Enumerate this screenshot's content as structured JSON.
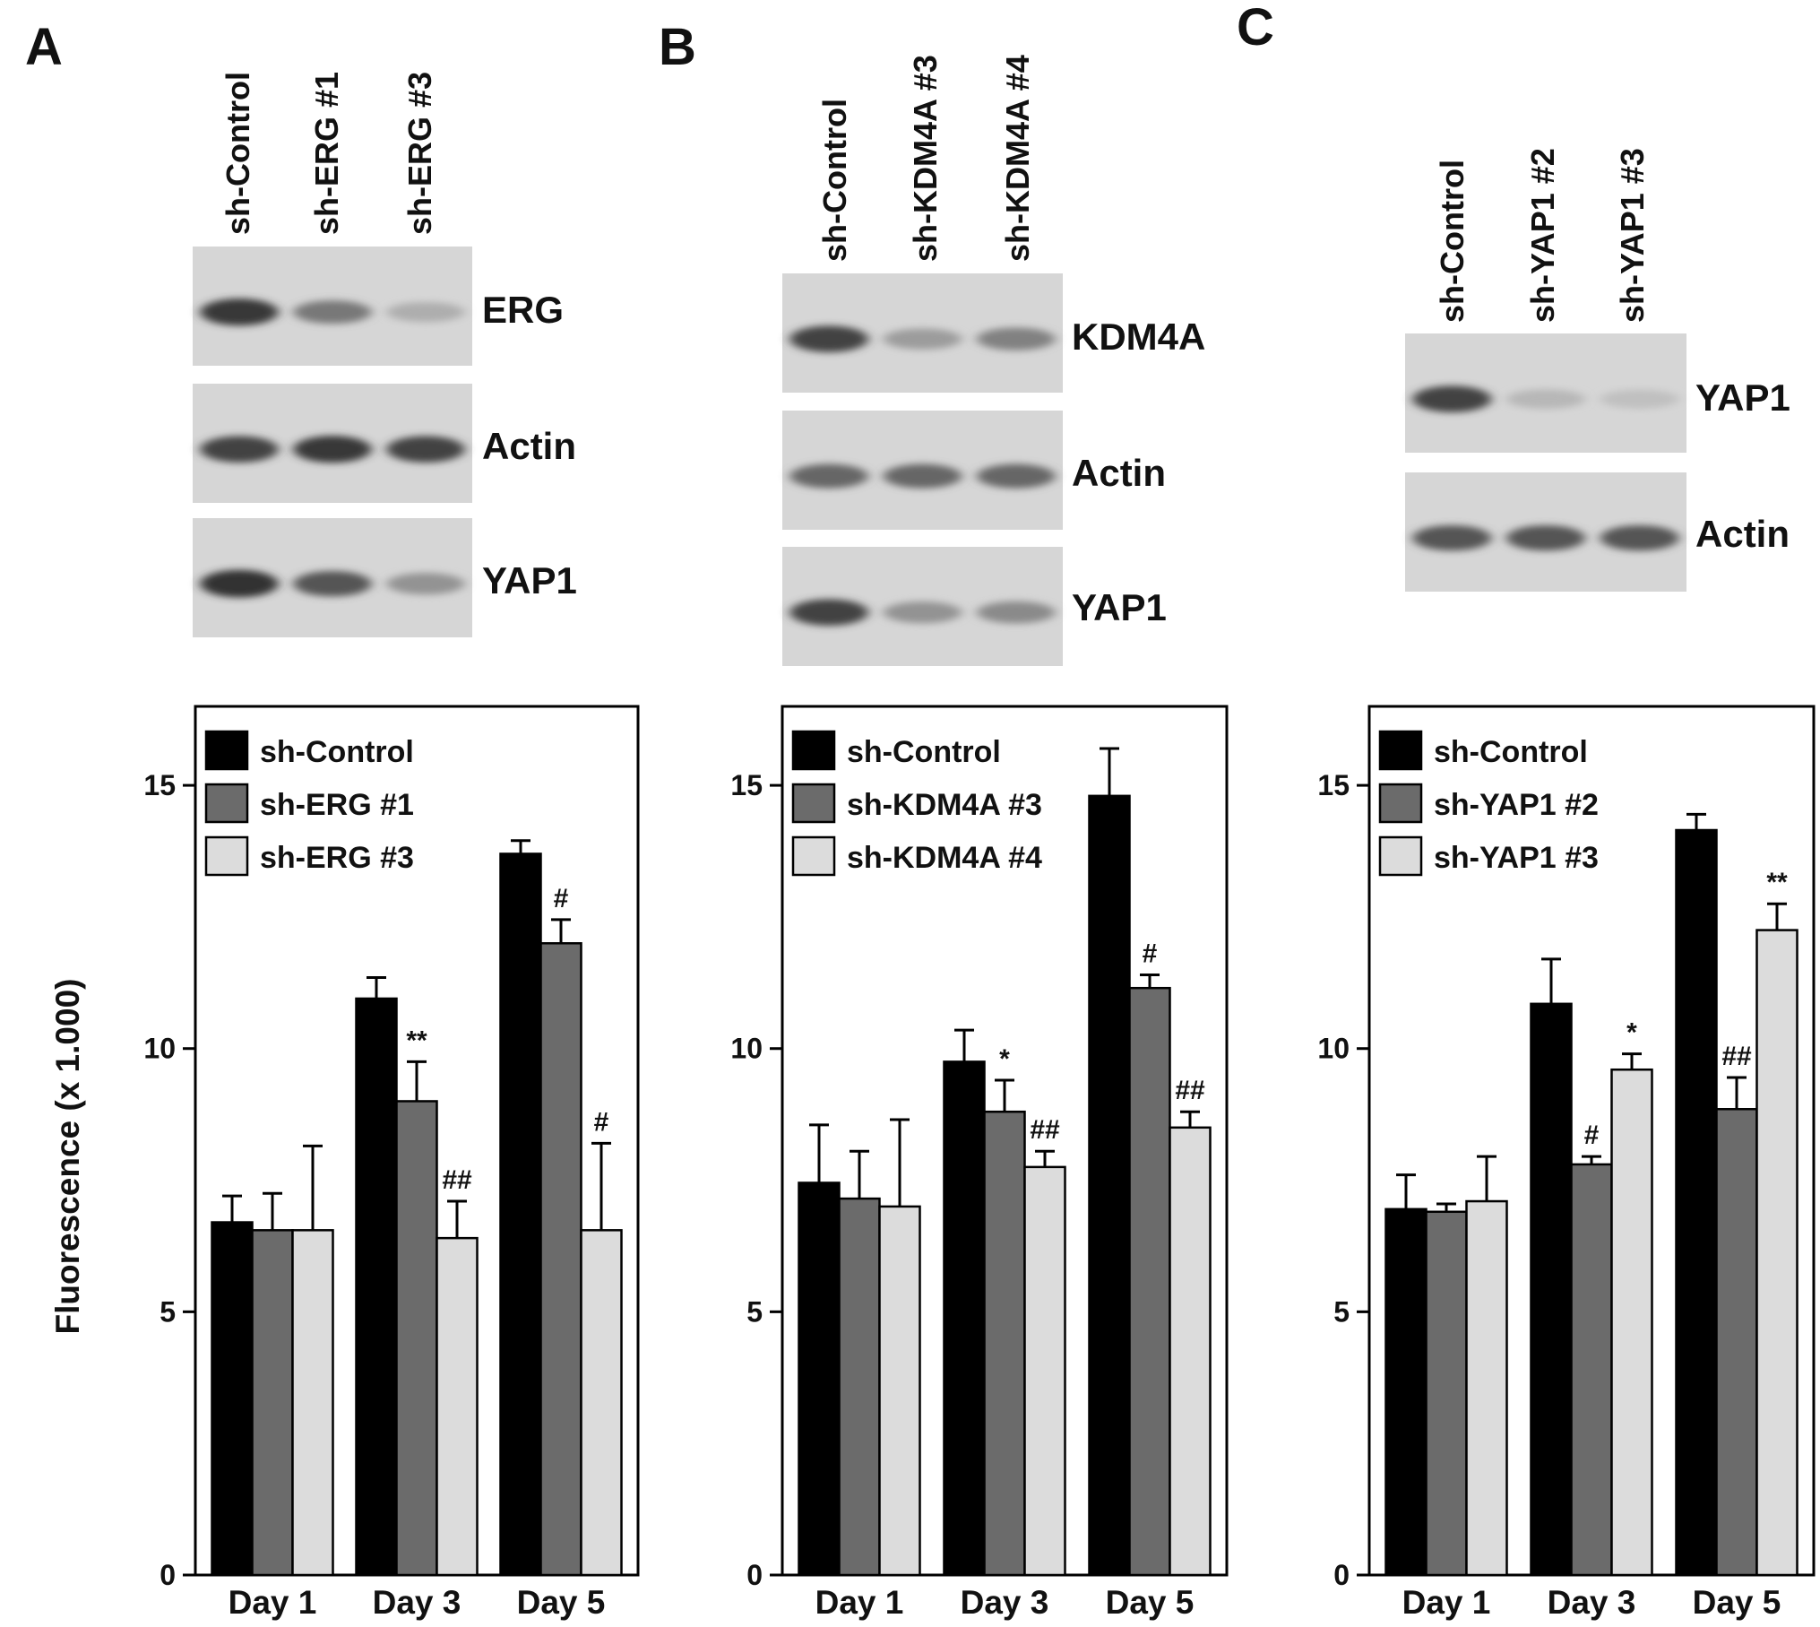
{
  "colors": {
    "sh_control": "#000000",
    "knockdown_1": "#6b6b6b",
    "knockdown_2": "#dcdcdc",
    "axis": "#000000"
  },
  "y_axis_label": "Fluorescence  (x 1.000)",
  "panels": [
    {
      "letter": "A",
      "lanes": [
        "sh-Control",
        "sh-ERG #1",
        "sh-ERG #3"
      ],
      "blots": [
        {
          "protein": "ERG",
          "bands": [
            0.85,
            0.5,
            0.2
          ]
        },
        {
          "protein": "Actin",
          "bands": [
            0.8,
            0.85,
            0.8
          ]
        },
        {
          "protein": "YAP1",
          "bands": [
            0.9,
            0.7,
            0.35
          ]
        }
      ]
    },
    {
      "letter": "B",
      "lanes": [
        "sh-Control",
        "sh-KDM4A #3",
        "sh-KDM4A #4"
      ],
      "blots": [
        {
          "protein": "KDM4A",
          "bands": [
            0.8,
            0.3,
            0.45
          ]
        },
        {
          "protein": "Actin",
          "bands": [
            0.6,
            0.6,
            0.6
          ]
        },
        {
          "protein": "YAP1",
          "bands": [
            0.8,
            0.35,
            0.4
          ]
        }
      ]
    },
    {
      "letter": "C",
      "lanes": [
        "sh-Control",
        "sh-YAP1 #2",
        "sh-YAP1 #3"
      ],
      "blots": [
        {
          "protein": "YAP1",
          "bands": [
            0.8,
            0.15,
            0.1
          ]
        },
        {
          "protein": "Actin",
          "bands": [
            0.7,
            0.7,
            0.7
          ]
        }
      ]
    }
  ],
  "chart_data": [
    {
      "type": "bar",
      "categories": [
        "Day 1",
        "Day 3",
        "Day 5"
      ],
      "ylim": [
        0,
        16.5
      ],
      "yticks": [
        0,
        5,
        10,
        15
      ],
      "ylabel": "Fluorescence  (x 1.000)",
      "legend_position": "top-left",
      "series": [
        {
          "name": "sh-Control",
          "values": [
            6.7,
            10.95,
            13.7
          ],
          "errors": [
            0.5,
            0.4,
            0.25
          ]
        },
        {
          "name": "sh-ERG #1",
          "values": [
            6.55,
            9.0,
            12.0
          ],
          "errors": [
            0.7,
            0.75,
            0.45
          ]
        },
        {
          "name": "sh-ERG #3",
          "values": [
            6.55,
            6.4,
            6.55
          ],
          "errors": [
            1.6,
            0.7,
            1.65
          ]
        }
      ],
      "annotations": [
        {
          "series": 1,
          "category": 1,
          "text": "**"
        },
        {
          "series": 2,
          "category": 1,
          "text": "##"
        },
        {
          "series": 1,
          "category": 2,
          "text": "#"
        },
        {
          "series": 2,
          "category": 2,
          "text": "#"
        }
      ]
    },
    {
      "type": "bar",
      "categories": [
        "Day 1",
        "Day 3",
        "Day 5"
      ],
      "ylim": [
        0,
        16.5
      ],
      "yticks": [
        0,
        5,
        10,
        15
      ],
      "legend_position": "top-left",
      "series": [
        {
          "name": "sh-Control",
          "values": [
            7.45,
            9.75,
            14.8
          ],
          "errors": [
            1.1,
            0.6,
            0.9
          ]
        },
        {
          "name": "sh-KDM4A #3",
          "values": [
            7.15,
            8.8,
            11.15
          ],
          "errors": [
            0.9,
            0.6,
            0.25
          ]
        },
        {
          "name": "sh-KDM4A #4",
          "values": [
            7.0,
            7.75,
            8.5
          ],
          "errors": [
            1.65,
            0.3,
            0.3
          ]
        }
      ],
      "annotations": [
        {
          "series": 1,
          "category": 1,
          "text": "*"
        },
        {
          "series": 2,
          "category": 1,
          "text": "##"
        },
        {
          "series": 1,
          "category": 2,
          "text": "#"
        },
        {
          "series": 2,
          "category": 2,
          "text": "##"
        }
      ]
    },
    {
      "type": "bar",
      "categories": [
        "Day 1",
        "Day 3",
        "Day 5"
      ],
      "ylim": [
        0,
        16.5
      ],
      "yticks": [
        0,
        5,
        10,
        15
      ],
      "legend_position": "top-left",
      "series": [
        {
          "name": "sh-Control",
          "values": [
            6.95,
            10.85,
            14.15
          ],
          "errors": [
            0.65,
            0.85,
            0.3
          ]
        },
        {
          "name": "sh-YAP1 #2",
          "values": [
            6.9,
            7.8,
            8.85
          ],
          "errors": [
            0.15,
            0.15,
            0.6
          ]
        },
        {
          "name": "sh-YAP1 #3",
          "values": [
            7.1,
            9.6,
            12.25
          ],
          "errors": [
            0.85,
            0.3,
            0.5
          ]
        }
      ],
      "annotations": [
        {
          "series": 1,
          "category": 1,
          "text": "#"
        },
        {
          "series": 2,
          "category": 1,
          "text": "*"
        },
        {
          "series": 1,
          "category": 2,
          "text": "##"
        },
        {
          "series": 2,
          "category": 2,
          "text": "**"
        }
      ]
    }
  ]
}
